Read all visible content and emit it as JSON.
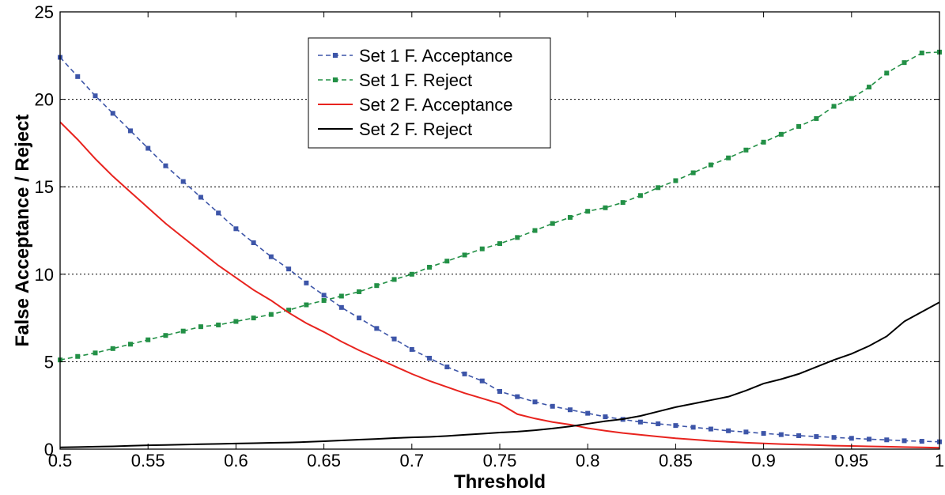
{
  "chart_data": {
    "type": "line",
    "title": "",
    "xlabel": "Threshold",
    "ylabel": "False Acceptance / Reject",
    "xlim": [
      0.5,
      1
    ],
    "ylim": [
      0,
      25
    ],
    "xticks": [
      "0.5",
      "0.55",
      "0.6",
      "0.65",
      "0.7",
      "0.75",
      "0.8",
      "0.85",
      "0.9",
      "0.95",
      "1"
    ],
    "yticks": [
      "0",
      "5",
      "10",
      "15",
      "20",
      "25"
    ],
    "grid": "horizontal dotted",
    "legend_position": "top-center",
    "x": [
      0.5,
      0.51,
      0.52,
      0.53,
      0.54,
      0.55,
      0.56,
      0.57,
      0.58,
      0.59,
      0.6,
      0.61,
      0.62,
      0.63,
      0.64,
      0.65,
      0.66,
      0.67,
      0.68,
      0.69,
      0.7,
      0.71,
      0.72,
      0.73,
      0.74,
      0.75,
      0.76,
      0.77,
      0.78,
      0.79,
      0.8,
      0.81,
      0.82,
      0.83,
      0.84,
      0.85,
      0.86,
      0.87,
      0.88,
      0.89,
      0.9,
      0.91,
      0.92,
      0.93,
      0.94,
      0.95,
      0.96,
      0.97,
      0.98,
      0.99,
      1.0
    ],
    "series": [
      {
        "name": "Set 1 F. Acceptance",
        "color": "#3d55a8",
        "style": "dashed",
        "marker": "square",
        "values": [
          22.4,
          21.3,
          20.2,
          19.2,
          18.2,
          17.2,
          16.2,
          15.3,
          14.4,
          13.5,
          12.6,
          11.8,
          11.0,
          10.3,
          9.5,
          8.8,
          8.1,
          7.5,
          6.9,
          6.3,
          5.7,
          5.2,
          4.7,
          4.3,
          3.9,
          3.3,
          3.0,
          2.7,
          2.45,
          2.25,
          2.05,
          1.85,
          1.7,
          1.55,
          1.45,
          1.35,
          1.25,
          1.15,
          1.05,
          0.98,
          0.9,
          0.83,
          0.77,
          0.72,
          0.67,
          0.62,
          0.57,
          0.53,
          0.48,
          0.45,
          0.42
        ]
      },
      {
        "name": "Set 1 F. Reject",
        "color": "#239046",
        "style": "dashed",
        "marker": "square",
        "values": [
          5.1,
          5.3,
          5.5,
          5.75,
          6.0,
          6.25,
          6.5,
          6.75,
          7.0,
          7.1,
          7.3,
          7.5,
          7.7,
          7.95,
          8.25,
          8.5,
          8.75,
          9.0,
          9.35,
          9.7,
          10.0,
          10.4,
          10.75,
          11.1,
          11.45,
          11.75,
          12.1,
          12.5,
          12.9,
          13.25,
          13.6,
          13.8,
          14.1,
          14.5,
          14.95,
          15.35,
          15.8,
          16.25,
          16.65,
          17.1,
          17.55,
          18.0,
          18.45,
          18.9,
          19.6,
          20.05,
          20.7,
          21.5,
          22.1,
          22.65,
          22.7
        ]
      },
      {
        "name": "Set 2 F. Acceptance",
        "color": "#e8231e",
        "style": "solid",
        "marker": "none",
        "values": [
          18.7,
          17.7,
          16.6,
          15.6,
          14.7,
          13.8,
          12.9,
          12.1,
          11.3,
          10.5,
          9.8,
          9.1,
          8.5,
          7.8,
          7.2,
          6.7,
          6.15,
          5.65,
          5.2,
          4.75,
          4.3,
          3.9,
          3.55,
          3.2,
          2.9,
          2.6,
          2.0,
          1.75,
          1.55,
          1.4,
          1.2,
          1.05,
          0.92,
          0.82,
          0.72,
          0.62,
          0.55,
          0.47,
          0.42,
          0.37,
          0.33,
          0.29,
          0.26,
          0.23,
          0.2,
          0.18,
          0.16,
          0.14,
          0.12,
          0.1,
          0.08
        ]
      },
      {
        "name": "Set 2 F. Reject",
        "color": "#000000",
        "style": "solid",
        "marker": "none",
        "values": [
          0.1,
          0.12,
          0.14,
          0.16,
          0.19,
          0.22,
          0.24,
          0.26,
          0.28,
          0.3,
          0.32,
          0.34,
          0.36,
          0.38,
          0.41,
          0.45,
          0.5,
          0.54,
          0.58,
          0.63,
          0.67,
          0.7,
          0.75,
          0.82,
          0.88,
          0.95,
          1.0,
          1.08,
          1.18,
          1.3,
          1.45,
          1.6,
          1.72,
          1.9,
          2.15,
          2.4,
          2.6,
          2.8,
          3.0,
          3.35,
          3.75,
          4.0,
          4.3,
          4.7,
          5.1,
          5.45,
          5.9,
          6.45,
          7.3,
          7.85,
          8.4
        ]
      }
    ]
  }
}
